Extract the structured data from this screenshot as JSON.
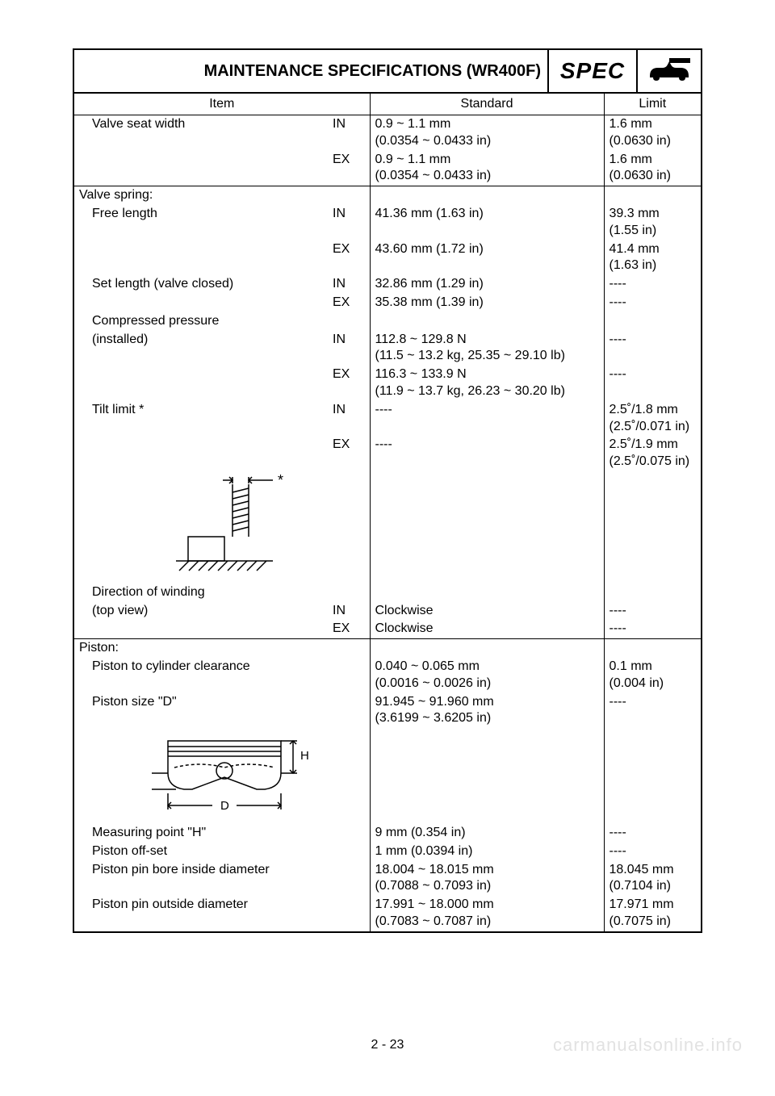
{
  "header": {
    "title": "MAINTENANCE SPECIFICATIONS (WR400F)",
    "spec_label": "SPEC"
  },
  "columns": {
    "item": "Item",
    "standard": "Standard",
    "limit": "Limit"
  },
  "rows": [
    {
      "item": "Valve seat width",
      "sub": "IN",
      "std": "0.9 ~ 1.1 mm\n(0.0354 ~ 0.0433 in)",
      "lim": "1.6 mm\n(0.0630 in)"
    },
    {
      "item": "",
      "sub": "EX",
      "std": "0.9 ~ 1.1 mm\n(0.0354 ~ 0.0433 in)",
      "lim": "1.6 mm\n(0.0630 in)"
    },
    {
      "divider": true,
      "section": true,
      "item": "Valve spring:",
      "sub": "",
      "std": "",
      "lim": ""
    },
    {
      "item": "Free length",
      "sub": "IN",
      "std": "41.36 mm (1.63 in)",
      "lim": "39.3 mm\n(1.55 in)"
    },
    {
      "item": "",
      "sub": "EX",
      "std": "43.60 mm (1.72 in)",
      "lim": "41.4 mm\n(1.63 in)"
    },
    {
      "item": "Set length (valve closed)",
      "sub": "IN",
      "std": "32.86 mm (1.29 in)",
      "lim": "----"
    },
    {
      "item": "",
      "sub": "EX",
      "std": "35.38 mm (1.39 in)",
      "lim": "----"
    },
    {
      "item": "Compressed pressure",
      "sub": "",
      "std": "",
      "lim": ""
    },
    {
      "item": "(installed)",
      "sub": "IN",
      "std": "112.8 ~ 129.8 N\n(11.5 ~ 13.2 kg, 25.35 ~ 29.10 lb)",
      "lim": "----"
    },
    {
      "item": "",
      "sub": "EX",
      "std": "116.3 ~ 133.9 N\n(11.9 ~ 13.7 kg, 26.23 ~ 30.20 lb)",
      "lim": "----"
    },
    {
      "item": "Tilt limit *",
      "sub": "IN",
      "std": "----",
      "lim": "2.5˚/1.8 mm\n(2.5˚/0.071 in)"
    },
    {
      "item": "",
      "sub": "EX",
      "std": "----",
      "lim": "2.5˚/1.9 mm\n(2.5˚/0.075 in)"
    },
    {
      "diagram": "spring"
    },
    {
      "item": "Direction of winding",
      "sub": "",
      "std": "",
      "lim": ""
    },
    {
      "item": "(top view)",
      "sub": "IN",
      "std": "Clockwise",
      "lim": "----"
    },
    {
      "item": "",
      "sub": "EX",
      "std": "Clockwise",
      "lim": "----"
    },
    {
      "divider": true,
      "section": true,
      "item": "Piston:",
      "sub": "",
      "std": "",
      "lim": ""
    },
    {
      "item": "Piston to cylinder clearance",
      "sub": "",
      "std": "0.040 ~ 0.065 mm\n(0.0016 ~ 0.0026 in)",
      "lim": "0.1 mm\n(0.004 in)"
    },
    {
      "item": "Piston size \"D\"",
      "sub": "",
      "std": "91.945 ~ 91.960 mm\n(3.6199 ~ 3.6205 in)",
      "lim": "----"
    },
    {
      "diagram": "piston"
    },
    {
      "item": "Measuring point \"H\"",
      "sub": "",
      "std": "9 mm (0.354 in)",
      "lim": "----"
    },
    {
      "item": "Piston off-set",
      "sub": "",
      "std": "1 mm (0.0394 in)",
      "lim": "----"
    },
    {
      "item": "Piston pin bore inside diameter",
      "sub": "",
      "std": "18.004 ~ 18.015 mm\n(0.7088 ~ 0.7093 in)",
      "lim": "18.045 mm\n(0.7104 in)"
    },
    {
      "item": "Piston pin outside diameter",
      "sub": "",
      "std": "17.991 ~ 18.000 mm\n(0.7083 ~ 0.7087 in)",
      "lim": "17.971 mm\n(0.7075 in)"
    }
  ],
  "page_number": "2 - 23",
  "watermark": "carmanualsonline.info",
  "diagrams": {
    "spring": {
      "star": "*"
    },
    "piston": {
      "h_label": "H",
      "d_label": "D"
    }
  }
}
